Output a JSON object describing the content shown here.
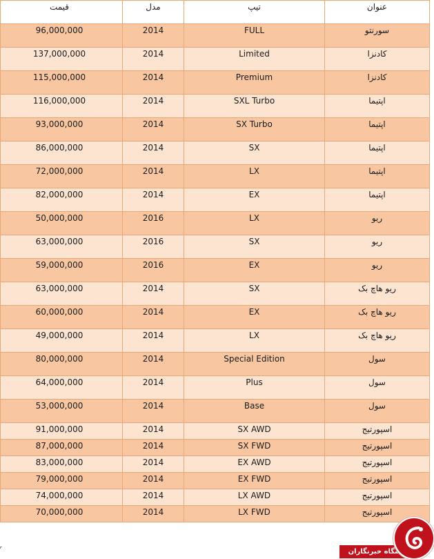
{
  "table": {
    "headers": {
      "title": "عنوان",
      "type": "تیپ",
      "model": "مدل",
      "price": "قیمت"
    },
    "rows": [
      {
        "title": "سورنتو",
        "type": "FULL",
        "model": "2014",
        "price": "96,000,000"
      },
      {
        "title": "کادنزا",
        "type": "Limited",
        "model": "2014",
        "price": "137,000,000"
      },
      {
        "title": "کادنزا",
        "type": "Premium",
        "model": "2014",
        "price": "115,000,000"
      },
      {
        "title": "اپتیما",
        "type": "SXL Turbo",
        "model": "2014",
        "price": "116,000,000"
      },
      {
        "title": "اپتیما",
        "type": "SX Turbo",
        "model": "2014",
        "price": "93,000,000"
      },
      {
        "title": "اپتیما",
        "type": "SX",
        "model": "2014",
        "price": "86,000,000"
      },
      {
        "title": "اپتیما",
        "type": "LX",
        "model": "2014",
        "price": "72,000,000"
      },
      {
        "title": "اپتیما",
        "type": "EX",
        "model": "2014",
        "price": "82,000,000"
      },
      {
        "title": "ریو",
        "type": "LX",
        "model": "2016",
        "price": "50,000,000"
      },
      {
        "title": "ریو",
        "type": "SX",
        "model": "2016",
        "price": "63,000,000"
      },
      {
        "title": "ریو",
        "type": "EX",
        "model": "2016",
        "price": "59,000,000"
      },
      {
        "title": "ریو هاچ بک",
        "type": "SX",
        "model": "2014",
        "price": "63,000,000"
      },
      {
        "title": "ریو هاچ بک",
        "type": "EX",
        "model": "2014",
        "price": "60,000,000"
      },
      {
        "title": "ریو هاچ بک",
        "type": "LX",
        "model": "2014",
        "price": "49,000,000"
      },
      {
        "title": "سول",
        "type": "Special Edition",
        "model": "2014",
        "price": "80,000,000"
      },
      {
        "title": "سول",
        "type": "Plus",
        "model": "2014",
        "price": "64,000,000"
      },
      {
        "title": "سول",
        "type": "Base",
        "model": "2014",
        "price": "53,000,000"
      },
      {
        "title": "اسپورتیج",
        "type": "SX AWD",
        "model": "2014",
        "price": "91,000,000"
      },
      {
        "title": "اسپورتیج",
        "type": "SX FWD",
        "model": "2014",
        "price": "87,000,000"
      },
      {
        "title": "اسپورتیج",
        "type": "EX AWD",
        "model": "2014",
        "price": "83,000,000"
      },
      {
        "title": "اسپورتیج",
        "type": "EX FWD",
        "model": "2014",
        "price": "79,000,000"
      },
      {
        "title": "اسپورتیج",
        "type": "LX AWD",
        "model": "2014",
        "price": "74,000,000"
      },
      {
        "title": "اسپورتیج",
        "type": "LX FWD",
        "model": "2014",
        "price": "70,000,000"
      }
    ]
  },
  "watermark": {
    "site_name": "باشگاه خبرنگاران",
    "icon": "khabarnegaran-logo-icon",
    "brand_color": "#c0121c"
  },
  "colors": {
    "row_dark": "#f8c7a1",
    "row_light": "#fde4d0",
    "border": "#e8a878"
  }
}
